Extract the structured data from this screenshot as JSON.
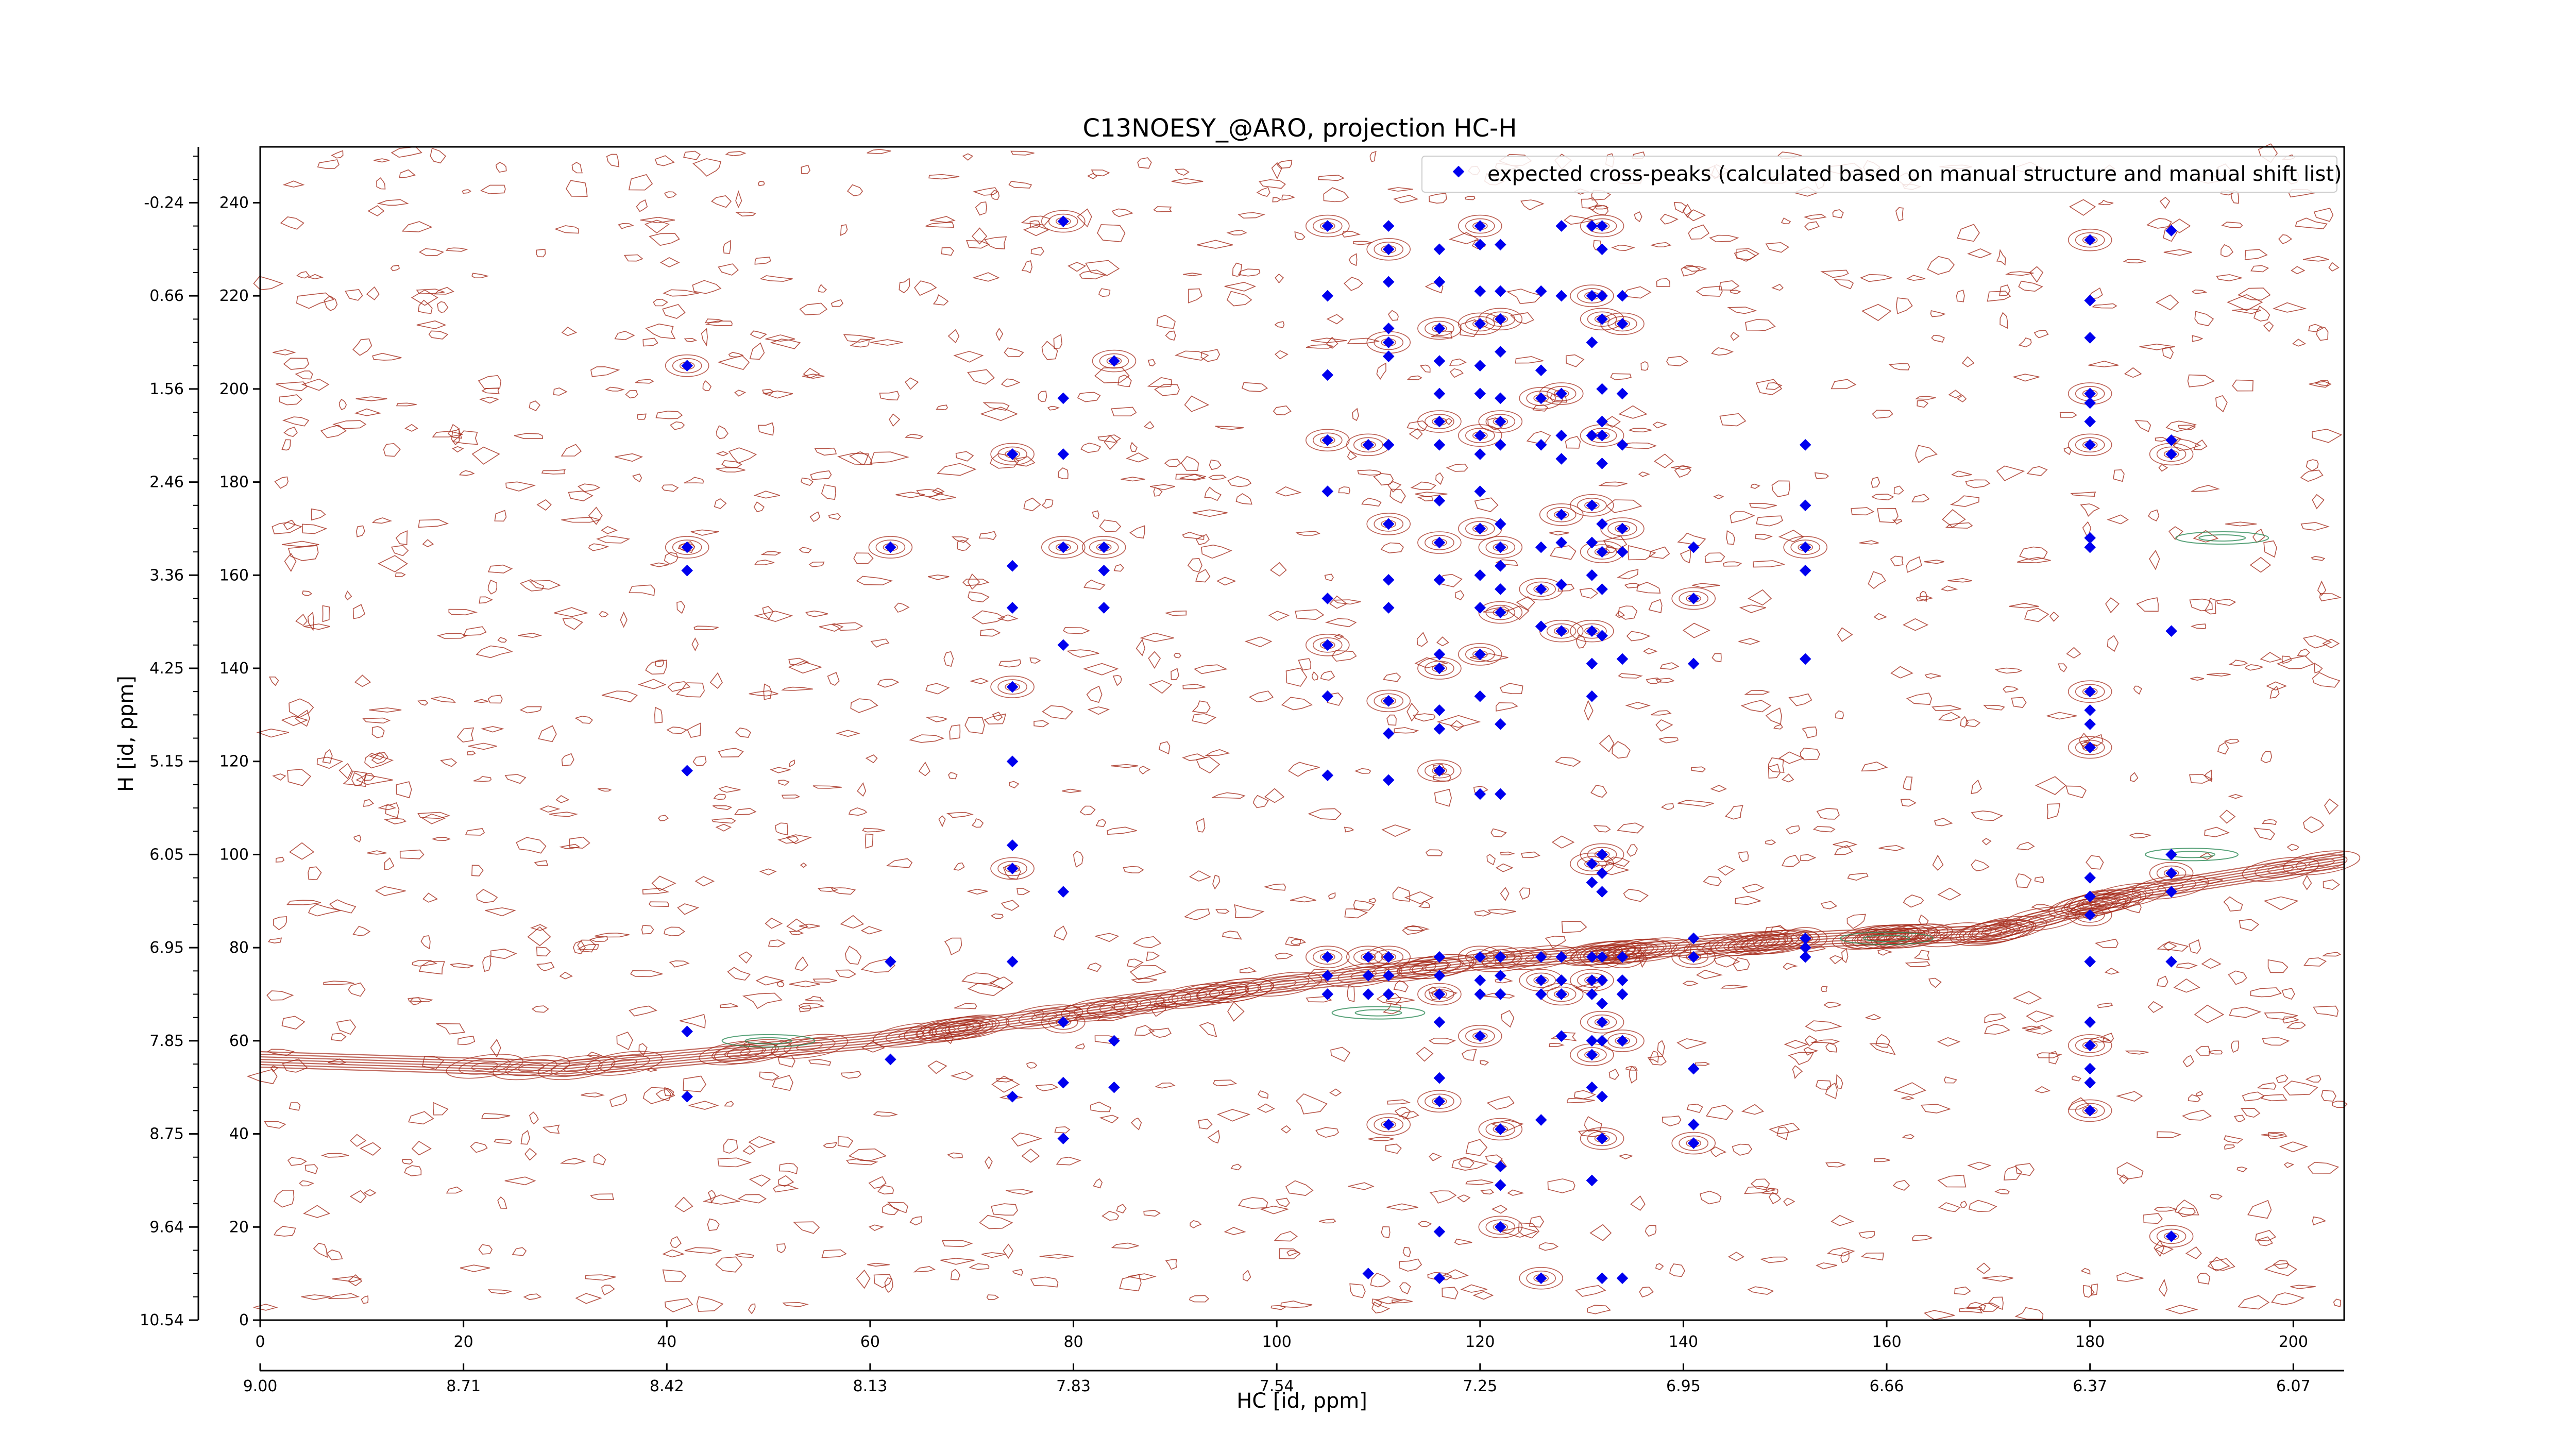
{
  "chart_data": {
    "type": "scatter",
    "title": "C13NOESY_@ARO, projection HC-H",
    "xlabel": "HC [id, ppm]",
    "ylabel": "H [id, ppm]",
    "xlim": [
      0,
      205
    ],
    "ylim": [
      0,
      252
    ],
    "x_ticks": [
      0,
      20,
      40,
      60,
      80,
      100,
      120,
      140,
      160,
      180,
      200
    ],
    "y_ticks": [
      0,
      20,
      40,
      60,
      80,
      100,
      120,
      140,
      160,
      180,
      200,
      220,
      240
    ],
    "x_ppm_ticks": [
      "9.00",
      "8.71",
      "8.42",
      "8.13",
      "7.83",
      "7.54",
      "7.25",
      "6.95",
      "6.66",
      "6.37",
      "6.07"
    ],
    "y_ppm_ticks": [
      "10.54",
      "9.64",
      "8.75",
      "7.85",
      "6.95",
      "6.05",
      "5.15",
      "4.25",
      "3.36",
      "2.46",
      "1.56",
      "0.66",
      "-0.24"
    ],
    "grid": false,
    "legend_position": "top-right",
    "colors": {
      "contour_positive": "#a52a1a",
      "contour_negative": "#2e8b57",
      "peaks": "#0000ee"
    },
    "series": [
      {
        "name": "expected cross-peaks (calculated based on manual structure and manual shift list)",
        "points": [
          [
            42,
            166
          ],
          [
            42,
            161
          ],
          [
            42,
            118
          ],
          [
            42,
            205
          ],
          [
            42,
            62
          ],
          [
            42,
            48
          ],
          [
            62,
            166
          ],
          [
            62,
            77
          ],
          [
            62,
            56
          ],
          [
            74,
            186
          ],
          [
            74,
            162
          ],
          [
            74,
            153
          ],
          [
            74,
            136
          ],
          [
            74,
            120
          ],
          [
            74,
            102
          ],
          [
            74,
            97
          ],
          [
            74,
            77
          ],
          [
            74,
            48
          ],
          [
            79,
            236
          ],
          [
            79,
            198
          ],
          [
            79,
            186
          ],
          [
            79,
            166
          ],
          [
            79,
            145
          ],
          [
            79,
            92
          ],
          [
            79,
            64
          ],
          [
            79,
            51
          ],
          [
            79,
            39
          ],
          [
            83,
            166
          ],
          [
            83,
            161
          ],
          [
            83,
            153
          ],
          [
            84,
            206
          ],
          [
            84,
            60
          ],
          [
            84,
            50
          ],
          [
            105,
            235
          ],
          [
            105,
            220
          ],
          [
            105,
            203
          ],
          [
            105,
            189
          ],
          [
            105,
            178
          ],
          [
            105,
            155
          ],
          [
            105,
            145
          ],
          [
            105,
            134
          ],
          [
            105,
            117
          ],
          [
            105,
            78
          ],
          [
            105,
            74
          ],
          [
            105,
            70
          ],
          [
            109,
            188
          ],
          [
            109,
            74
          ],
          [
            109,
            70
          ],
          [
            109,
            78
          ],
          [
            109,
            10
          ],
          [
            111,
            235
          ],
          [
            111,
            230
          ],
          [
            111,
            223
          ],
          [
            111,
            213
          ],
          [
            111,
            210
          ],
          [
            111,
            207
          ],
          [
            111,
            188
          ],
          [
            111,
            171
          ],
          [
            111,
            159
          ],
          [
            111,
            153
          ],
          [
            111,
            133
          ],
          [
            111,
            126
          ],
          [
            111,
            116
          ],
          [
            111,
            78
          ],
          [
            111,
            74
          ],
          [
            111,
            70
          ],
          [
            111,
            42
          ],
          [
            116,
            230
          ],
          [
            116,
            223
          ],
          [
            116,
            213
          ],
          [
            116,
            206
          ],
          [
            116,
            199
          ],
          [
            116,
            193
          ],
          [
            116,
            188
          ],
          [
            116,
            176
          ],
          [
            116,
            167
          ],
          [
            116,
            159
          ],
          [
            116,
            143
          ],
          [
            116,
            140
          ],
          [
            116,
            131
          ],
          [
            116,
            127
          ],
          [
            116,
            118
          ],
          [
            116,
            78
          ],
          [
            116,
            74
          ],
          [
            116,
            70
          ],
          [
            116,
            64
          ],
          [
            116,
            52
          ],
          [
            116,
            47
          ],
          [
            116,
            19
          ],
          [
            116,
            9
          ],
          [
            120,
            235
          ],
          [
            120,
            231
          ],
          [
            120,
            221
          ],
          [
            120,
            214
          ],
          [
            120,
            205
          ],
          [
            120,
            199
          ],
          [
            120,
            190
          ],
          [
            120,
            186
          ],
          [
            120,
            178
          ],
          [
            120,
            170
          ],
          [
            120,
            160
          ],
          [
            120,
            153
          ],
          [
            120,
            143
          ],
          [
            120,
            134
          ],
          [
            120,
            113
          ],
          [
            120,
            78
          ],
          [
            120,
            73
          ],
          [
            120,
            70
          ],
          [
            120,
            61
          ],
          [
            122,
            231
          ],
          [
            122,
            221
          ],
          [
            122,
            215
          ],
          [
            122,
            208
          ],
          [
            122,
            198
          ],
          [
            122,
            193
          ],
          [
            122,
            188
          ],
          [
            122,
            171
          ],
          [
            122,
            166
          ],
          [
            122,
            162
          ],
          [
            122,
            157
          ],
          [
            122,
            152
          ],
          [
            122,
            128
          ],
          [
            122,
            113
          ],
          [
            122,
            78
          ],
          [
            122,
            74
          ],
          [
            122,
            70
          ],
          [
            122,
            41
          ],
          [
            122,
            33
          ],
          [
            122,
            29
          ],
          [
            122,
            20
          ],
          [
            126,
            221
          ],
          [
            126,
            204
          ],
          [
            126,
            198
          ],
          [
            126,
            188
          ],
          [
            126,
            166
          ],
          [
            126,
            157
          ],
          [
            126,
            149
          ],
          [
            126,
            78
          ],
          [
            126,
            73
          ],
          [
            126,
            70
          ],
          [
            126,
            43
          ],
          [
            126,
            9
          ],
          [
            128,
            235
          ],
          [
            128,
            220
          ],
          [
            128,
            199
          ],
          [
            128,
            190
          ],
          [
            128,
            185
          ],
          [
            128,
            173
          ],
          [
            128,
            167
          ],
          [
            128,
            158
          ],
          [
            128,
            148
          ],
          [
            128,
            78
          ],
          [
            128,
            73
          ],
          [
            128,
            70
          ],
          [
            128,
            61
          ],
          [
            131,
            235
          ],
          [
            131,
            220
          ],
          [
            131,
            210
          ],
          [
            131,
            190
          ],
          [
            131,
            175
          ],
          [
            131,
            167
          ],
          [
            131,
            160
          ],
          [
            131,
            148
          ],
          [
            131,
            141
          ],
          [
            131,
            134
          ],
          [
            131,
            98
          ],
          [
            131,
            94
          ],
          [
            131,
            78
          ],
          [
            131,
            73
          ],
          [
            131,
            70
          ],
          [
            131,
            60
          ],
          [
            131,
            57
          ],
          [
            131,
            50
          ],
          [
            131,
            30
          ],
          [
            132,
            235
          ],
          [
            132,
            230
          ],
          [
            132,
            220
          ],
          [
            132,
            215
          ],
          [
            132,
            200
          ],
          [
            132,
            193
          ],
          [
            132,
            190
          ],
          [
            132,
            184
          ],
          [
            132,
            171
          ],
          [
            132,
            165
          ],
          [
            132,
            157
          ],
          [
            132,
            147
          ],
          [
            132,
            100
          ],
          [
            132,
            96
          ],
          [
            132,
            92
          ],
          [
            132,
            78
          ],
          [
            132,
            73
          ],
          [
            132,
            68
          ],
          [
            132,
            64
          ],
          [
            132,
            60
          ],
          [
            132,
            48
          ],
          [
            132,
            39
          ],
          [
            132,
            9
          ],
          [
            134,
            220
          ],
          [
            134,
            214
          ],
          [
            134,
            199
          ],
          [
            134,
            188
          ],
          [
            134,
            170
          ],
          [
            134,
            165
          ],
          [
            134,
            142
          ],
          [
            134,
            78
          ],
          [
            134,
            73
          ],
          [
            134,
            70
          ],
          [
            134,
            60
          ],
          [
            134,
            9
          ],
          [
            141,
            166
          ],
          [
            141,
            155
          ],
          [
            141,
            141
          ],
          [
            141,
            82
          ],
          [
            141,
            78
          ],
          [
            141,
            54
          ],
          [
            141,
            42
          ],
          [
            141,
            38
          ],
          [
            152,
            188
          ],
          [
            152,
            175
          ],
          [
            152,
            166
          ],
          [
            152,
            161
          ],
          [
            152,
            142
          ],
          [
            152,
            82
          ],
          [
            152,
            80
          ],
          [
            152,
            78
          ],
          [
            180,
            232
          ],
          [
            180,
            219
          ],
          [
            180,
            211
          ],
          [
            180,
            199
          ],
          [
            180,
            197
          ],
          [
            180,
            193
          ],
          [
            180,
            188
          ],
          [
            180,
            168
          ],
          [
            180,
            166
          ],
          [
            180,
            135
          ],
          [
            180,
            131
          ],
          [
            180,
            128
          ],
          [
            180,
            123
          ],
          [
            180,
            95
          ],
          [
            180,
            91
          ],
          [
            180,
            87
          ],
          [
            180,
            77
          ],
          [
            180,
            64
          ],
          [
            180,
            59
          ],
          [
            180,
            54
          ],
          [
            180,
            51
          ],
          [
            180,
            45
          ],
          [
            188,
            234
          ],
          [
            188,
            189
          ],
          [
            188,
            186
          ],
          [
            188,
            148
          ],
          [
            188,
            100
          ],
          [
            188,
            96
          ],
          [
            188,
            92
          ],
          [
            188,
            77
          ],
          [
            188,
            18
          ]
        ]
      }
    ],
    "diagonal_ridge": [
      [
        0,
        56
      ],
      [
        30,
        54
      ],
      [
        60,
        60
      ],
      [
        80,
        66
      ],
      [
        100,
        72
      ],
      [
        120,
        77
      ],
      [
        140,
        80
      ],
      [
        155,
        82
      ],
      [
        170,
        83
      ],
      [
        185,
        92
      ],
      [
        205,
        99
      ]
    ]
  }
}
